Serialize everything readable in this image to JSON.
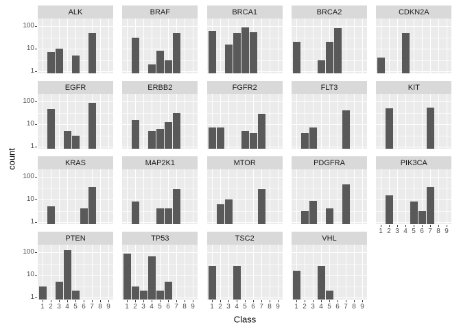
{
  "axes": {
    "y": {
      "title": "count",
      "ticks": [
        "100",
        "10",
        "1"
      ]
    },
    "x": {
      "title": "Class",
      "ticks": [
        "1",
        "2",
        "3",
        "4",
        "5",
        "6",
        "7",
        "8",
        "9"
      ]
    }
  },
  "colors": {
    "bar": "#595959",
    "panel_bg": "#ebebeb",
    "strip_bg": "#d9d9d9",
    "strip_text": "#1a1a1a",
    "grid": "#ffffff",
    "tick_text": "#4d4d4d",
    "axis_title_text": "#000000"
  },
  "chart_data": {
    "type": "bar",
    "faceted": true,
    "facet_by": "gene",
    "xlabel": "Class",
    "ylabel": "count",
    "x_categories": [
      1,
      2,
      3,
      4,
      5,
      6,
      7,
      8,
      9
    ],
    "y_scale": "log10",
    "y_ticks": [
      1,
      10,
      100
    ],
    "ylim": [
      1,
      130
    ],
    "grid": true,
    "facets": [
      {
        "gene": "ALK",
        "counts": {
          "2": 7,
          "3": 10,
          "5": 5,
          "7": 50
        }
      },
      {
        "gene": "BRAF",
        "counts": {
          "2": 30,
          "4": 2,
          "5": 8,
          "6": 3,
          "7": 50
        }
      },
      {
        "gene": "BRCA1",
        "counts": {
          "1": 60,
          "3": 15,
          "4": 50,
          "5": 90,
          "6": 55
        }
      },
      {
        "gene": "BRCA2",
        "counts": {
          "1": 20,
          "4": 3,
          "5": 20,
          "6": 80
        }
      },
      {
        "gene": "CDKN2A",
        "counts": {
          "1": 4,
          "4": 50
        }
      },
      {
        "gene": "EGFR",
        "counts": {
          "2": 45,
          "4": 5,
          "5": 3,
          "7": 90
        }
      },
      {
        "gene": "ERBB2",
        "counts": {
          "2": 15,
          "4": 5,
          "5": 6,
          "6": 12,
          "7": 30
        }
      },
      {
        "gene": "FGFR2",
        "counts": {
          "1": 7,
          "2": 7,
          "5": 5,
          "6": 4,
          "7": 28
        }
      },
      {
        "gene": "FLT3",
        "counts": {
          "2": 4,
          "3": 7,
          "7": 40
        }
      },
      {
        "gene": "KIT",
        "counts": {
          "2": 50,
          "7": 55
        }
      },
      {
        "gene": "KRAS",
        "counts": {
          "2": 5,
          "6": 4,
          "7": 35
        }
      },
      {
        "gene": "MAP2K1",
        "counts": {
          "2": 8,
          "5": 4,
          "6": 4,
          "7": 28
        }
      },
      {
        "gene": "MTOR",
        "counts": {
          "2": 6,
          "3": 10,
          "7": 28
        }
      },
      {
        "gene": "PDGFRA",
        "counts": {
          "2": 3,
          "3": 9,
          "5": 4,
          "7": 45
        }
      },
      {
        "gene": "PIK3CA",
        "counts": {
          "2": 15,
          "5": 8,
          "6": 3,
          "7": 35
        }
      },
      {
        "gene": "PTEN",
        "counts": {
          "1": 3,
          "3": 5,
          "4": 120,
          "5": 2
        }
      },
      {
        "gene": "TP53",
        "counts": {
          "1": 85,
          "2": 3,
          "3": 2,
          "4": 65,
          "5": 2,
          "6": 5
        }
      },
      {
        "gene": "TSC2",
        "counts": {
          "1": 25,
          "4": 25
        }
      },
      {
        "gene": "VHL",
        "counts": {
          "1": 15,
          "4": 25,
          "5": 2
        }
      }
    ]
  }
}
